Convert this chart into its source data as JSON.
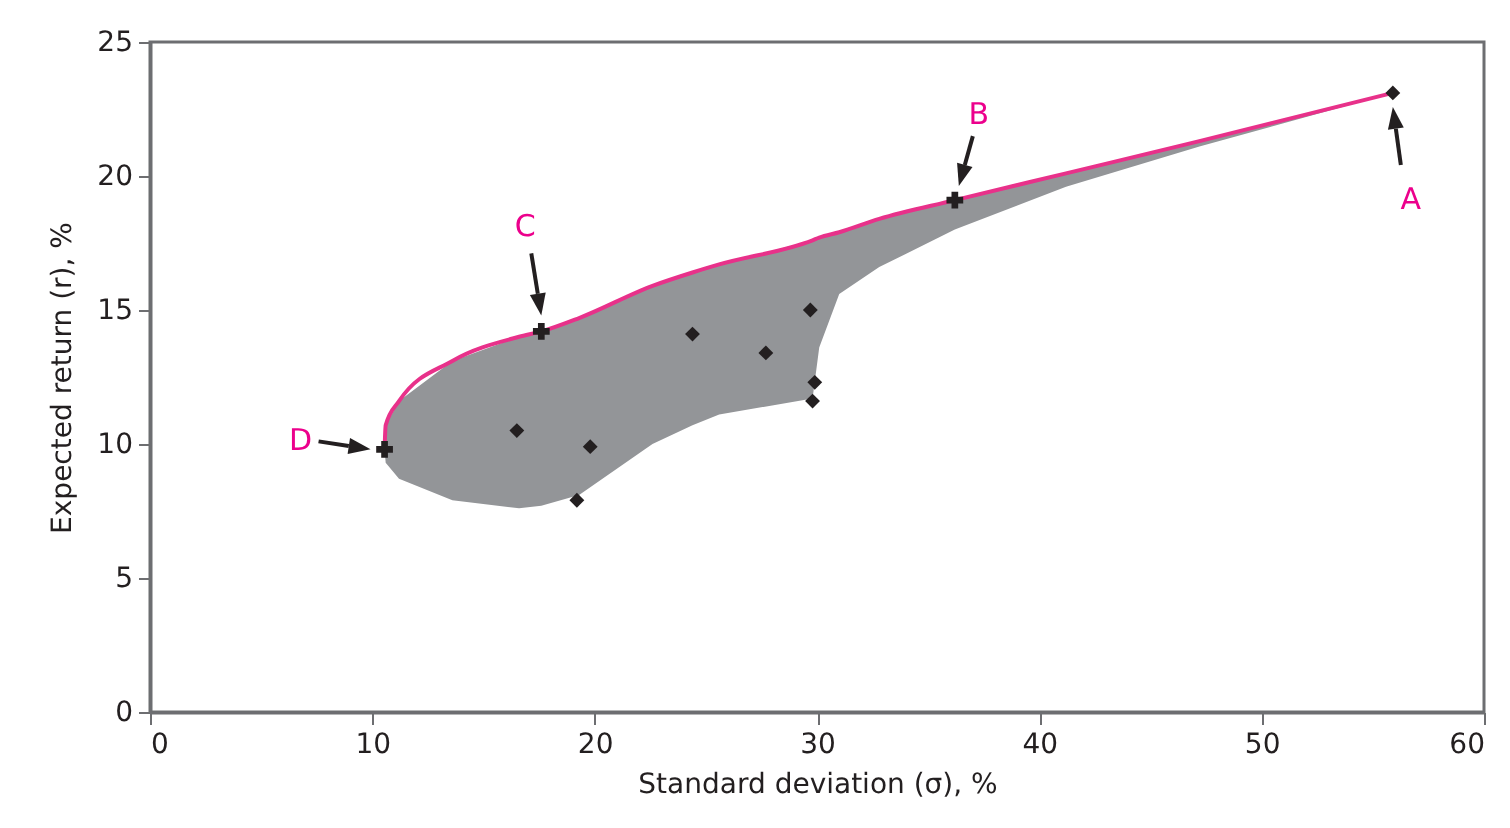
{
  "chart_data": {
    "type": "scatter",
    "xlabel": "Standard deviation (σ), %",
    "ylabel": "Expected return (r), %",
    "xlim": [
      0,
      60
    ],
    "xticks": [
      0,
      10,
      20,
      30,
      40,
      50,
      60
    ],
    "ylim": [
      0,
      25
    ],
    "yticks": [
      0,
      5,
      10,
      15,
      20,
      25
    ],
    "grid": false,
    "series": [
      {
        "type": "line",
        "color": "#e8318a",
        "marker": "none",
        "x": [
          10.55,
          10.6,
          11.2,
          13.6,
          16.6,
          17.6,
          19.3,
          22.6,
          24.4,
          25.6,
          29.8,
          30.1,
          31,
          32.8,
          36.2,
          41.2,
          47.2,
          55.9
        ],
        "values": [
          9.8,
          10.7,
          11.6,
          13.1,
          14.0,
          14.2,
          14.7,
          15.9,
          16.4,
          16.7,
          17.6,
          17.7,
          17.9,
          18.4,
          19.1,
          20.1,
          21.3,
          23.1
        ],
        "lower": [
          9.8,
          9.3,
          8.7,
          7.9,
          7.6,
          7.7,
          8.1,
          10.0,
          10.7,
          11.1,
          11.7,
          13.6,
          15.6,
          16.6,
          18.0,
          19.6,
          21.1,
          23.1
        ],
        "upper": [
          9.8,
          10.7,
          11.6,
          13.1,
          14.0,
          14.2,
          14.7,
          15.9,
          16.4,
          16.7,
          17.6,
          17.7,
          17.9,
          18.4,
          19.1,
          20.1,
          21.3,
          23.1
        ]
      },
      {
        "type": "scatter",
        "color": "#231f20",
        "marker": "diamond",
        "x": [
          16.5,
          19.8,
          19.2,
          24.4,
          27.7,
          29.7,
          29.9,
          29.8,
          55.9
        ],
        "values": [
          10.5,
          9.9,
          7.9,
          14.1,
          13.4,
          15.0,
          12.3,
          11.6,
          23.1
        ]
      },
      {
        "type": "scatter",
        "color": "#231f20",
        "marker": "cross",
        "x": [
          36.2,
          17.6,
          10.55
        ],
        "values": [
          19.1,
          14.2,
          9.8
        ]
      }
    ],
    "annotations": [
      {
        "text": "A",
        "x": 55.9,
        "y": 23.1
      },
      {
        "text": "B",
        "x": 36.2,
        "y": 19.1
      },
      {
        "text": "C",
        "x": 17.6,
        "y": 14.2
      },
      {
        "text": "D",
        "x": 10.55,
        "y": 9.8
      }
    ]
  }
}
